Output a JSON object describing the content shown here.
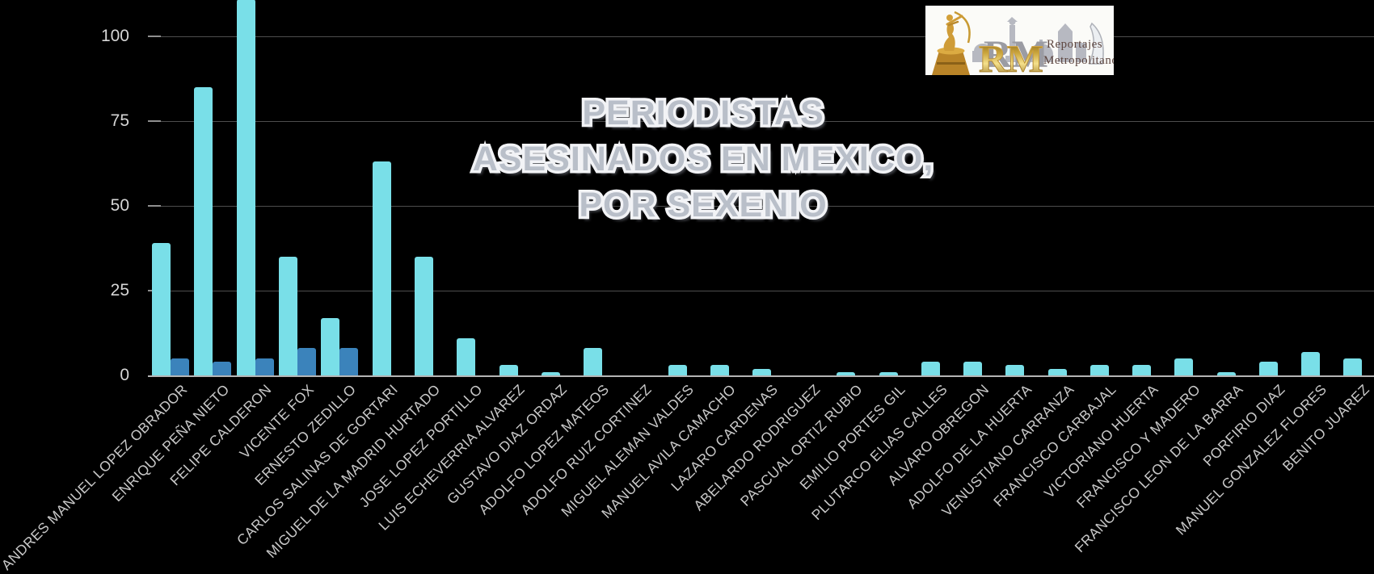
{
  "title": {
    "lines": [
      "PERIODISTAS",
      "ASESINADOS EN MEXICO,",
      "POR SEXENIO"
    ]
  },
  "logo": {
    "initials": "RM",
    "name_line1": "Reportajes",
    "name_line2": "Metropolitanos"
  },
  "chart_data": {
    "type": "bar",
    "title": "PERIODISTAS ASESINADOS EN MEXICO, POR SEXENIO",
    "categories": [
      "ANDRES MANUEL LOPEZ OBRADOR",
      "ENRIQUE PEÑA NIETO",
      "FELIPE CALDERON",
      "VICENTE FOX",
      "ERNESTO ZEDILLO",
      "CARLOS SALINAS DE GORTARI",
      "MIGUEL DE LA MADRID HURTADO",
      "JOSE LOPEZ PORTILLO",
      "LUIS ECHEVERRIA ALVAREZ",
      "GUSTAVO DIAZ ORDAZ",
      "ADOLFO LOPEZ MATEOS",
      "ADOLFO RUIZ CORTINEZ",
      "MIGUEL ALEMAN VALDES",
      "MANUEL AVILA CAMACHO",
      "LAZARO CARDENAS",
      "ABELARDO RODRIGUEZ",
      "PASCUAL ORTIZ RUBIO",
      "EMILIO PORTES GIL",
      "PLUTARCO ELIAS CALLES",
      "ALVARO OBREGON",
      "ADOLFO DE LA HUERTA",
      "VENUSTIANO CARRANZA",
      "FRANCISCO CARBAJAL",
      "VICTORIANO HUERTA",
      "FRANCISCO Y MADERO",
      "FRANCISCO LEON DE LA BARRA",
      "PORFIRIO DIAZ",
      "MANUEL GONZALEZ FLORES",
      "BENITO JUAREZ"
    ],
    "series": [
      {
        "name": "serie-principal",
        "color": "#79DFE8",
        "values": [
          39,
          85,
          111,
          35,
          17,
          63,
          35,
          11,
          3,
          1,
          8,
          0,
          3,
          3,
          2,
          0,
          1,
          1,
          4,
          4,
          3,
          2,
          3,
          3,
          5,
          1,
          4,
          7,
          5
        ]
      },
      {
        "name": "serie-secundaria",
        "color": "#3B83BB",
        "values": [
          5,
          4,
          5,
          8,
          8,
          null,
          null,
          null,
          null,
          null,
          null,
          null,
          null,
          null,
          null,
          null,
          null,
          null,
          null,
          null,
          null,
          null,
          null,
          null,
          null,
          null,
          null,
          null,
          null
        ]
      }
    ],
    "ylim": [
      0,
      110
    ],
    "yticks": [
      0,
      25,
      50,
      75,
      100
    ],
    "grid": "horizontal",
    "legend_position": "none",
    "background": "#000000",
    "grid_color": "#4d4d4d",
    "axis_line_color": "#b5b5b5",
    "tick_label_color": "#d6d6d6",
    "x_label_color": "#c9c9c9",
    "note_clipped": "La barra de FELIPE CALDERON sobrepasa el borde superior del gráfico (valor mayor a 110, recortada)"
  }
}
